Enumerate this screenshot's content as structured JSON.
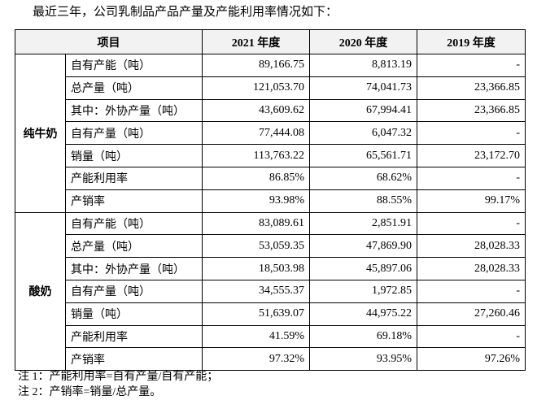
{
  "intro": "最近三年，公司乳制品产品产量及产能利用率情况如下：",
  "table": {
    "header": [
      "项目",
      "2021 年度",
      "2020 年度",
      "2019 年度"
    ],
    "groups": [
      {
        "name": "纯牛奶",
        "rows": [
          [
            "自有产能（吨）",
            "89,166.75",
            "8,813.19",
            "-"
          ],
          [
            "总产量（吨）",
            "121,053.70",
            "74,041.73",
            "23,366.85"
          ],
          [
            "其中：外协产量（吨）",
            "43,609.62",
            "67,994.41",
            "23,366.85"
          ],
          [
            "自有产量（吨）",
            "77,444.08",
            "6,047.32",
            "-"
          ],
          [
            "销量（吨）",
            "113,763.22",
            "65,561.71",
            "23,172.70"
          ],
          [
            "产能利用率",
            "86.85%",
            "68.62%",
            "-"
          ],
          [
            "产销率",
            "93.98%",
            "88.55%",
            "99.17%"
          ]
        ]
      },
      {
        "name": "酸奶",
        "rows": [
          [
            "自有产能（吨）",
            "83,089.61",
            "2,851.91",
            "-"
          ],
          [
            "总产量（吨）",
            "53,059.35",
            "47,869.90",
            "28,028.33"
          ],
          [
            "其中：外协产量（吨）",
            "18,503.98",
            "45,897.06",
            "28,028.33"
          ],
          [
            "自有产量（吨）",
            "34,555.37",
            "1,972.85",
            "-"
          ],
          [
            "销量（吨）",
            "51,639.07",
            "44,975.22",
            "27,260.46"
          ],
          [
            "产能利用率",
            "41.59%",
            "69.18%",
            "-"
          ],
          [
            "产销率",
            "97.32%",
            "93.95%",
            "97.26%"
          ]
        ]
      }
    ]
  },
  "notes": [
    "注 1：产能利用率=自有产量/自有产能；",
    "注 2：产销率=销量/总产量。"
  ]
}
